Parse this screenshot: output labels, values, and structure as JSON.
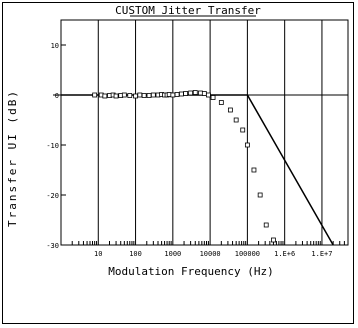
{
  "chart_data": {
    "type": "line",
    "title": "CUSTOM  Jitter Transfer",
    "xlabel": "Modulation Frequency (Hz)",
    "ylabel": "Transfer UI (dB)",
    "x_scale": "log",
    "xlim": [
      1,
      50000000
    ],
    "ylim": [
      -30,
      15
    ],
    "grid": true,
    "x_ticks": [
      {
        "value": 10,
        "label": "10"
      },
      {
        "value": 100,
        "label": "100"
      },
      {
        "value": 1000,
        "label": "1000"
      },
      {
        "value": 10000,
        "label": "10000"
      },
      {
        "value": 100000,
        "label": "100000"
      },
      {
        "value": 1000000,
        "label": "1.E+6"
      },
      {
        "value": 10000000,
        "label": "1.E+7"
      }
    ],
    "y_ticks": [
      {
        "value": 10,
        "label": "10"
      },
      {
        "value": 0,
        "label": "0"
      },
      {
        "value": -10,
        "label": "-10"
      },
      {
        "value": -20,
        "label": "-20"
      },
      {
        "value": -30,
        "label": "-30"
      }
    ],
    "series": [
      {
        "style": "line",
        "x": [
          1,
          100000,
          20000000
        ],
        "y": [
          0,
          0,
          -30
        ]
      },
      {
        "style": "markers",
        "x": [
          8,
          12,
          15,
          20,
          25,
          30,
          40,
          50,
          70,
          100,
          130,
          170,
          230,
          300,
          400,
          500,
          600,
          700,
          800,
          1000,
          1300,
          1700,
          2200,
          3000,
          4000,
          5500,
          7000,
          9000,
          12000,
          20000,
          35000,
          50000,
          75000,
          100000,
          150000,
          220000,
          320000,
          500000
        ],
        "y": [
          0,
          0,
          -0.2,
          -0.1,
          0,
          -0.2,
          -0.1,
          0,
          -0.1,
          -0.2,
          0,
          -0.1,
          -0.1,
          0,
          0,
          0.1,
          0,
          0,
          0.1,
          0,
          0.1,
          0.2,
          0.3,
          0.4,
          0.5,
          0.4,
          0.3,
          0,
          -0.5,
          -1.5,
          -3,
          -5,
          -7,
          -10,
          -15,
          -20,
          -26,
          -29
        ]
      }
    ]
  }
}
